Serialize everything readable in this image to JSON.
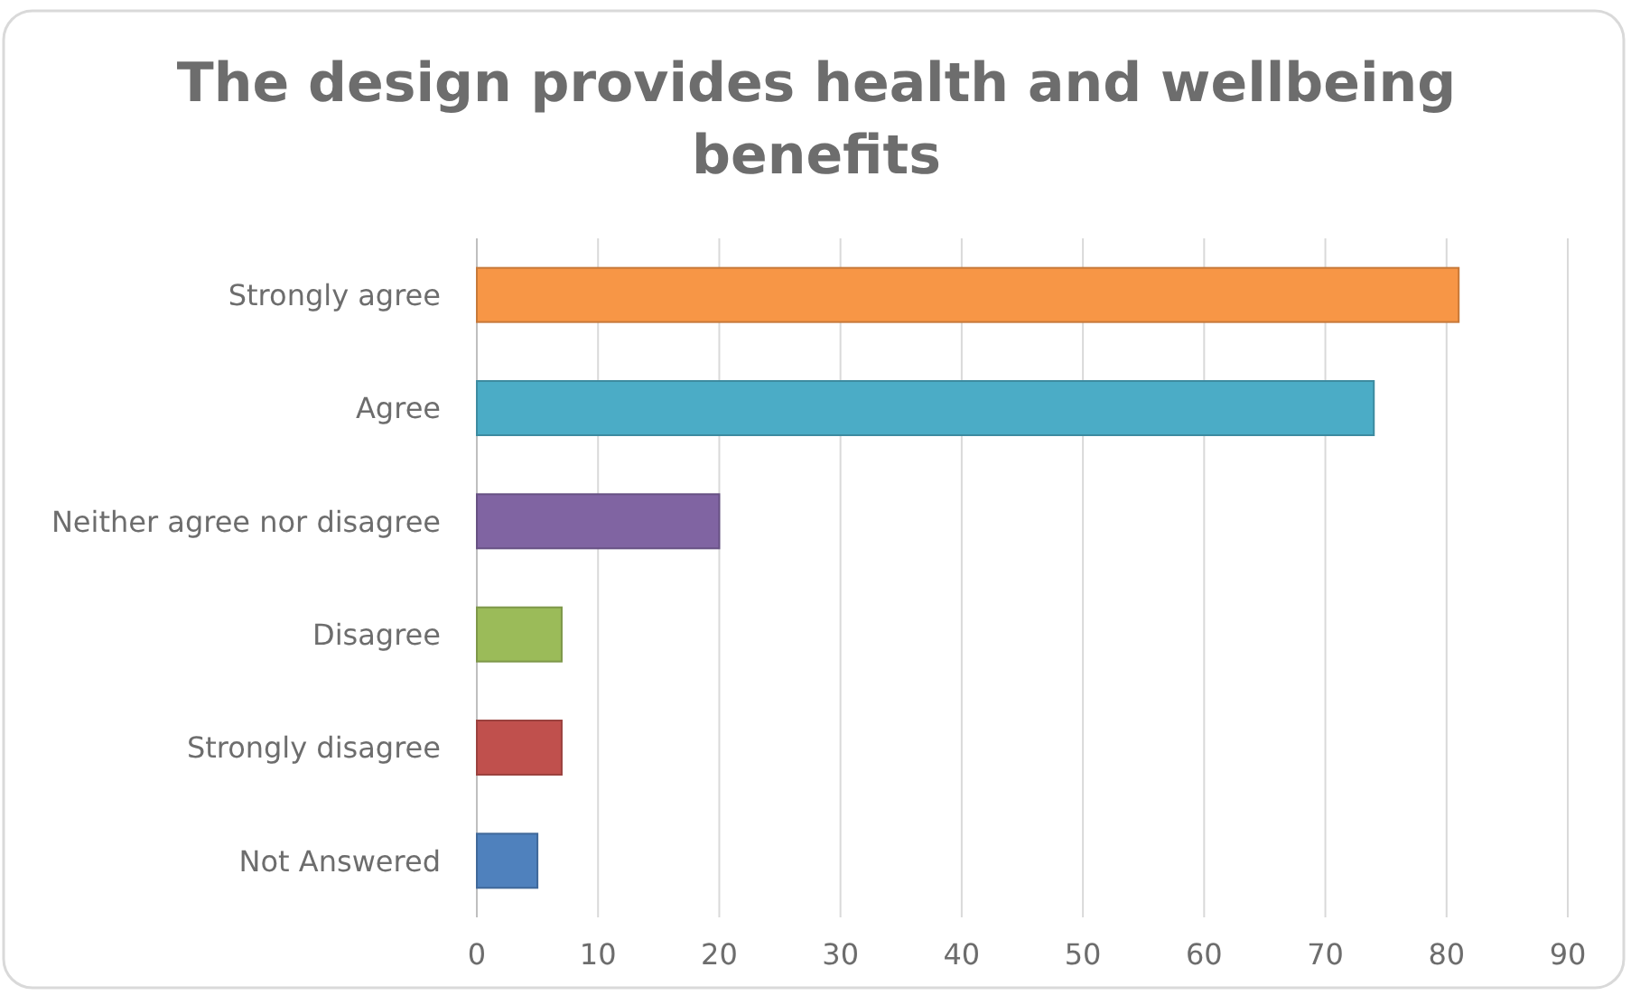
{
  "chart_data": {
    "type": "bar",
    "orientation": "horizontal",
    "title": "The design provides health and wellbeing benefits",
    "categories": [
      "Strongly agree",
      "Agree",
      "Neither agree nor disagree",
      "Disagree",
      "Strongly disagree",
      "Not Answered"
    ],
    "values": [
      81,
      74,
      20,
      7,
      7,
      5
    ],
    "colors": [
      "#f79646",
      "#4bacc6",
      "#8064a2",
      "#9bbb59",
      "#c0504d",
      "#4f81bd"
    ],
    "xlim": [
      0,
      90
    ],
    "xticks": [
      0,
      10,
      20,
      30,
      40,
      50,
      60,
      70,
      80,
      90
    ],
    "grid": "x"
  }
}
